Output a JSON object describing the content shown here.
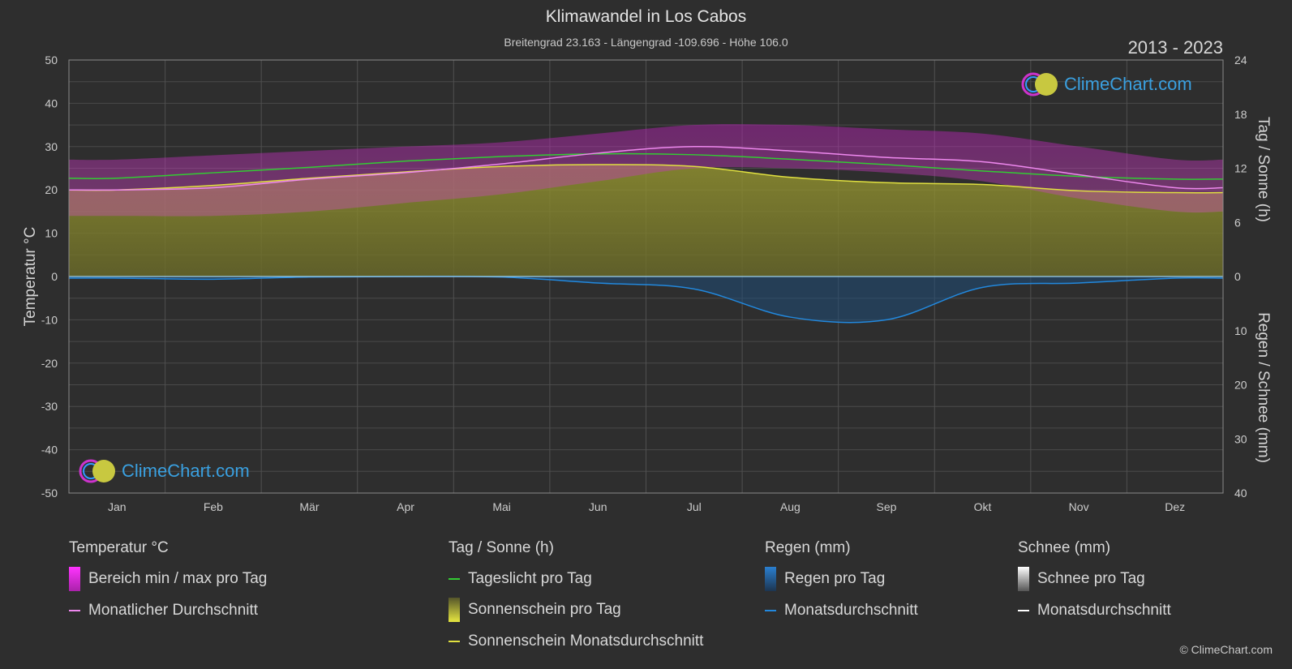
{
  "header": {
    "title": "Klimawandel in Los Cabos",
    "subtitle": "Breitengrad 23.163 - Längengrad -109.696 - Höhe 106.0",
    "year_range": "2013 - 2023"
  },
  "brand": {
    "name": "ClimeChart.com",
    "copyright": "© ClimeChart.com"
  },
  "chart_data": {
    "type": "line",
    "categories": [
      "Jan",
      "Feb",
      "Mär",
      "Apr",
      "Mai",
      "Jun",
      "Jul",
      "Aug",
      "Sep",
      "Okt",
      "Nov",
      "Dez"
    ],
    "y_left": {
      "label": "Temperatur °C",
      "ylim": [
        -50,
        50
      ],
      "ticks": [
        50,
        40,
        30,
        20,
        10,
        0,
        -10,
        -20,
        -30,
        -40,
        -50
      ]
    },
    "y_right_top": {
      "label": "Tag / Sonne (h)",
      "ylim": [
        0,
        24
      ],
      "ticks": [
        24,
        18,
        12,
        6,
        0
      ]
    },
    "y_right_bottom": {
      "label": "Regen / Schnee (mm)",
      "ylim": [
        0,
        40
      ],
      "ticks": [
        10,
        20,
        30,
        40
      ]
    },
    "grid": true,
    "series": [
      {
        "name": "Tageslicht pro Tag",
        "axis": "sun_h",
        "color": "#33cc33",
        "values": [
          10.9,
          11.5,
          12.1,
          12.8,
          13.3,
          13.6,
          13.5,
          13.0,
          12.4,
          11.7,
          11.1,
          10.8
        ]
      },
      {
        "name": "Sonnenschein Monatsdurchschnitt",
        "axis": "sun_h",
        "color": "#e0e040",
        "values": [
          9.6,
          10.1,
          10.9,
          11.6,
          12.2,
          12.4,
          12.2,
          11.0,
          10.4,
          10.2,
          9.5,
          9.3
        ]
      },
      {
        "name": "Monatlicher Durchschnitt",
        "axis": "temp_c",
        "color": "#ee88ee",
        "values": [
          20.0,
          20.5,
          22.5,
          24.0,
          26.0,
          28.5,
          30.0,
          29.0,
          27.5,
          26.5,
          23.5,
          20.5
        ]
      },
      {
        "name": "Bereich min / max pro Tag (max)",
        "axis": "temp_c",
        "color": "#cc22cc",
        "values": [
          27,
          28,
          29,
          30,
          31,
          33,
          35,
          35,
          34,
          33,
          30,
          27
        ]
      },
      {
        "name": "Bereich min / max pro Tag (min)",
        "axis": "temp_c",
        "color": "#cc22cc",
        "values": [
          14,
          14,
          15,
          17,
          19,
          22,
          25,
          25,
          24,
          22,
          18,
          15
        ]
      },
      {
        "name": "Monatsdurchschnitt Regen",
        "axis": "rain_mm",
        "color": "#2288dd",
        "values": [
          0.3,
          0.5,
          0.1,
          0.0,
          0.1,
          1.2,
          2.3,
          7.5,
          8.0,
          2.0,
          1.2,
          0.3
        ]
      }
    ]
  },
  "legend": {
    "temp": {
      "head": "Temperatur °C",
      "range": "Bereich min / max pro Tag",
      "avg": "Monatlicher Durchschnitt"
    },
    "sun": {
      "head": "Tag / Sonne (h)",
      "daylight": "Tageslicht pro Tag",
      "sunshine": "Sonnenschein pro Tag",
      "sun_avg": "Sonnenschein Monatsdurchschnitt"
    },
    "rain": {
      "head": "Regen (mm)",
      "per_day": "Regen pro Tag",
      "avg": "Monatsdurchschnitt"
    },
    "snow": {
      "head": "Schnee (mm)",
      "per_day": "Schnee pro Tag",
      "avg": "Monatsdurchschnitt"
    }
  },
  "colors": {
    "daylight": "#33cc33",
    "sunshine": "#e0e040",
    "temp_avg": "#ee88ee",
    "temp_range": "#cc22cc",
    "rain": "#2288dd",
    "snow": "#ffffff"
  }
}
